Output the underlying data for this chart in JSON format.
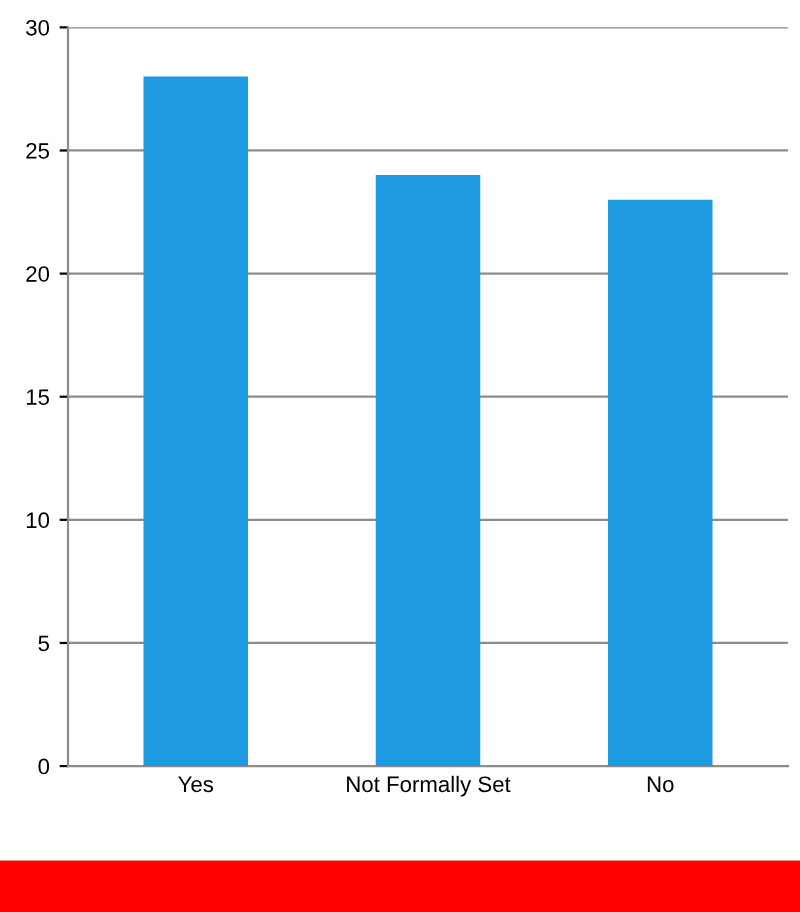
{
  "chart_data": {
    "type": "bar",
    "categories": [
      "Yes",
      "Not Formally Set",
      "No"
    ],
    "values": [
      28,
      24,
      23
    ],
    "colors": [
      "#1e9be0",
      "#1e9be0",
      "#1e9be0"
    ],
    "ylim": [
      0,
      30
    ],
    "yticks": [
      0,
      5,
      10,
      15,
      20,
      25,
      30
    ],
    "grid": "y",
    "legend": false
  }
}
